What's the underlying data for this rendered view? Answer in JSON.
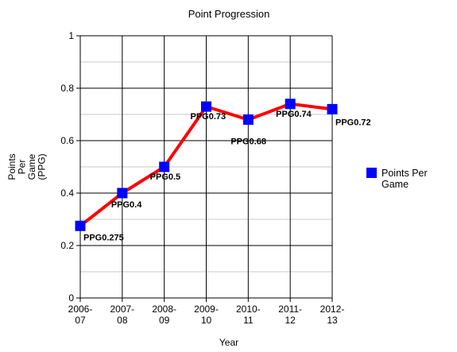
{
  "chart_data": {
    "type": "line",
    "title": "Point Progression",
    "xlabel": "Year",
    "ylabel_lines": [
      "Points",
      "Per",
      "Game",
      "(PPG)"
    ],
    "categories": [
      [
        "2006-",
        "07"
      ],
      [
        "2007-",
        "08"
      ],
      [
        "2008-",
        "09"
      ],
      [
        "2009-",
        "10"
      ],
      [
        "2010-",
        "11"
      ],
      [
        "2011-",
        "12"
      ],
      [
        "2012-",
        "13"
      ]
    ],
    "ylim": [
      0,
      1
    ],
    "yticks": [
      0,
      0.2,
      0.4,
      0.6,
      0.8,
      1
    ],
    "ytick_labels": [
      "0",
      "0.2",
      "0.4",
      "0.6",
      "0.8",
      "1"
    ],
    "grid": true,
    "legend_position": "right",
    "series": [
      {
        "name_lines": [
          "Points Per",
          "Game"
        ],
        "values": [
          0.275,
          0.4,
          0.5,
          0.73,
          0.68,
          0.74,
          0.72
        ],
        "data_labels": [
          "PPG0.275",
          "PPG0.4",
          "PPG0.5",
          "PPG0.73",
          "PPG0.68",
          "PPG0.74",
          "PPG0.72"
        ],
        "line_color": "#ff0000",
        "marker_color": "#0000ff"
      }
    ]
  }
}
